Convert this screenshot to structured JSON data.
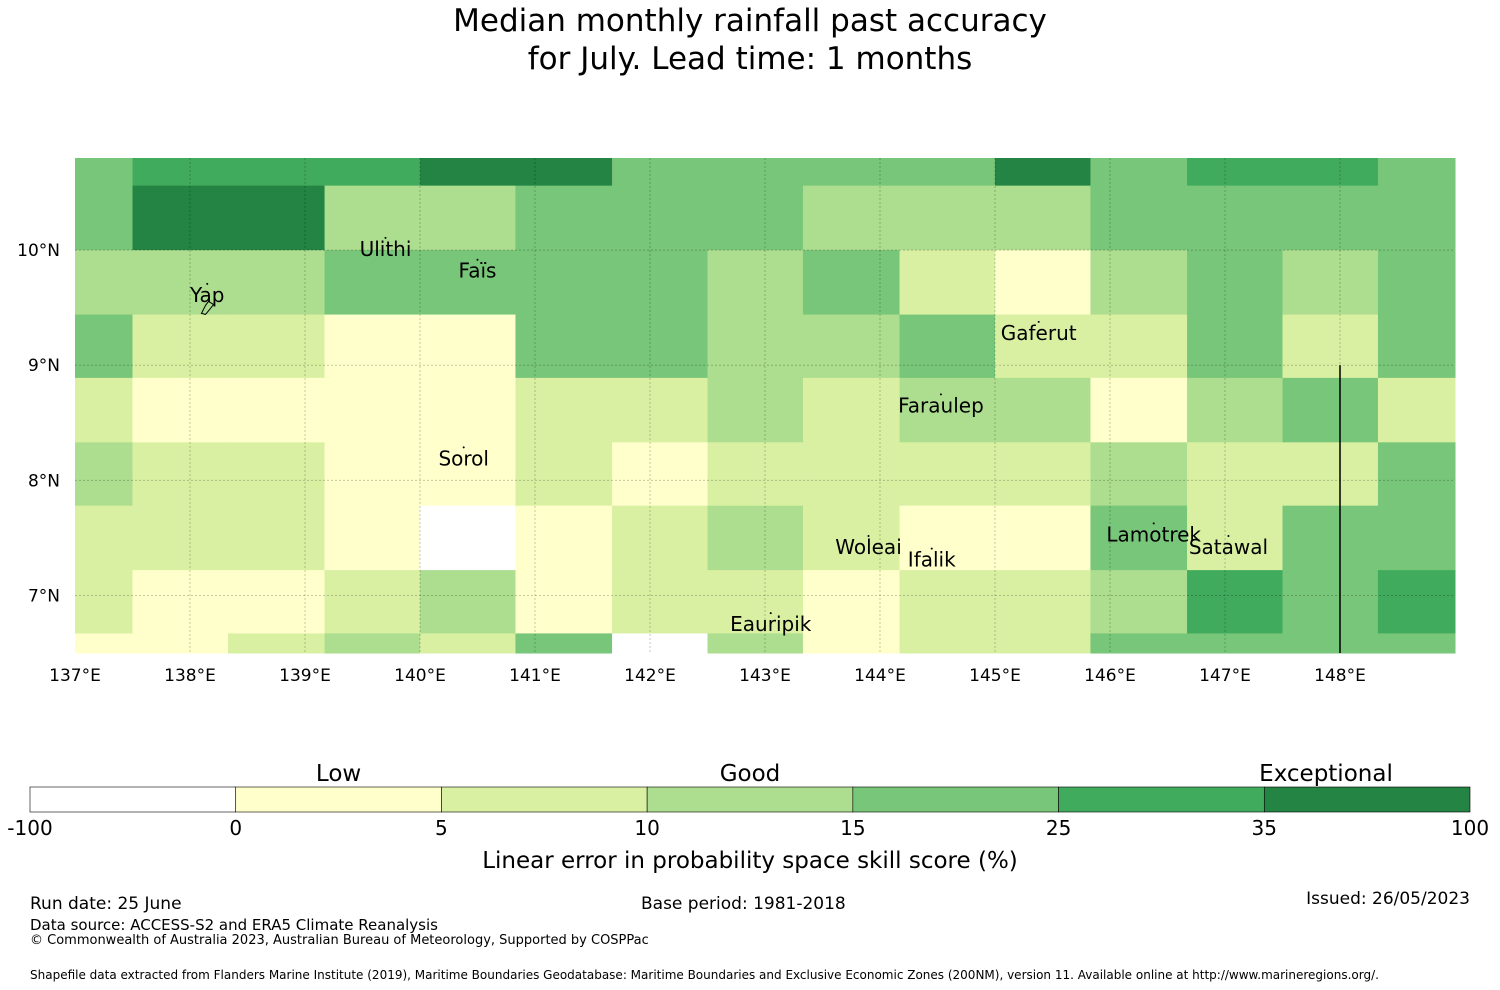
{
  "title": {
    "line1": "Median monthly rainfall past accuracy",
    "line2": "for July. Lead time: 1 months"
  },
  "map": {
    "lon_range": [
      137.0,
      149.0
    ],
    "lat_range": [
      6.5,
      10.8
    ],
    "x_ticks": [
      "137°E",
      "138°E",
      "139°E",
      "140°E",
      "141°E",
      "142°E",
      "143°E",
      "144°E",
      "145°E",
      "146°E",
      "147°E",
      "148°E"
    ],
    "y_ticks": [
      "10°N",
      "9°N",
      "8°N",
      "7°N"
    ],
    "cell_lon_edges": [
      137.0,
      137.5,
      138.33,
      139.17,
      140.0,
      140.83,
      141.67,
      142.5,
      143.33,
      144.17,
      145.0,
      145.83,
      146.67,
      147.5,
      148.33,
      149.0
    ],
    "cell_lat_edges": [
      10.8,
      10.56,
      10.0,
      9.44,
      8.89,
      8.33,
      7.78,
      7.22,
      6.67,
      6.5
    ],
    "grid_class": [
      [
        3,
        4,
        4,
        4,
        5,
        5,
        3,
        3,
        3,
        3,
        5,
        3,
        4,
        4,
        3
      ],
      [
        3,
        5,
        5,
        2,
        2,
        3,
        3,
        3,
        2,
        2,
        2,
        3,
        3,
        3,
        3
      ],
      [
        2,
        2,
        2,
        3,
        3,
        3,
        3,
        2,
        3,
        1,
        0,
        2,
        3,
        2,
        3
      ],
      [
        3,
        1,
        1,
        0,
        0,
        3,
        3,
        2,
        2,
        3,
        1,
        1,
        3,
        1,
        3
      ],
      [
        1,
        0,
        0,
        0,
        0,
        1,
        1,
        2,
        1,
        2,
        2,
        0,
        2,
        3,
        1
      ],
      [
        2,
        1,
        1,
        0,
        0,
        1,
        0,
        1,
        1,
        1,
        1,
        2,
        1,
        1,
        3
      ],
      [
        1,
        1,
        1,
        0,
        -1,
        0,
        1,
        2,
        1,
        0,
        0,
        3,
        1,
        3,
        3
      ],
      [
        1,
        0,
        0,
        1,
        2,
        0,
        1,
        1,
        0,
        1,
        1,
        2,
        4,
        3,
        4
      ],
      [
        0,
        0,
        1,
        2,
        1,
        3,
        -1,
        2,
        0,
        1,
        1,
        3,
        3,
        3,
        3
      ]
    ],
    "islands": [
      {
        "name": "Ulithi",
        "lon": 139.7,
        "lat": 9.95
      },
      {
        "name": "Faïs",
        "lon": 140.5,
        "lat": 9.76
      },
      {
        "name": "Yap",
        "lon": 138.15,
        "lat": 9.55
      },
      {
        "name": "Gaferut",
        "lon": 145.38,
        "lat": 9.22
      },
      {
        "name": "Faraulep",
        "lon": 144.53,
        "lat": 8.59
      },
      {
        "name": "Sorol",
        "lon": 140.38,
        "lat": 8.13
      },
      {
        "name": "Woleai",
        "lon": 143.9,
        "lat": 7.36
      },
      {
        "name": "Ifalik",
        "lon": 144.45,
        "lat": 7.25
      },
      {
        "name": "Lamotrek",
        "lon": 146.38,
        "lat": 7.47
      },
      {
        "name": "Satawal",
        "lon": 147.03,
        "lat": 7.36
      },
      {
        "name": "Eauripik",
        "lon": 143.05,
        "lat": 6.69
      }
    ],
    "eez_line_lon": 148.0,
    "eez_line_lat_range": [
      6.5,
      9.0
    ]
  },
  "legend": {
    "category_labels": [
      "Low",
      "Good",
      "Exceptional"
    ],
    "tick_labels": [
      "-100",
      "0",
      "5",
      "10",
      "15",
      "25",
      "35",
      "100"
    ],
    "colors": [
      "#ffffff",
      "#ffffcc",
      "#d9f0a3",
      "#addd8e",
      "#78c679",
      "#41ab5d",
      "#238443"
    ],
    "axis_label": "Linear error in probability space skill score (%)"
  },
  "footer": {
    "run_date": "Run date: 25 June",
    "base_period": "Base period: 1981-2018",
    "issued": "Issued: 26/05/2023",
    "data_source": "Data source: ACCESS-S2 and ERA5 Climate Reanalysis",
    "copyright": "© Commonwealth of Australia 2023, Australian Bureau of Meteorology, Supported by COSPPac",
    "shapefile": "Shapefile data extracted from Flanders Marine Institute (2019), Maritime Boundaries Geodatabase: Maritime Boundaries and Exclusive Economic Zones (200NM), version 11. Available online at http://www.marineregions.org/."
  }
}
